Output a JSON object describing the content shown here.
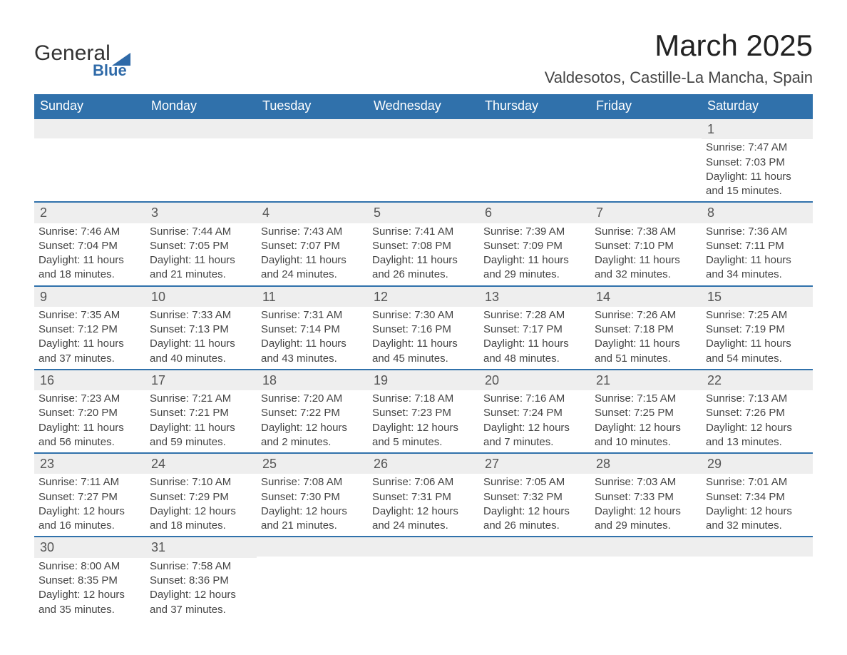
{
  "logo": {
    "word1": "General",
    "word2": "Blue",
    "shape_color": "#2f6aa8"
  },
  "title": "March 2025",
  "location": "Valdesotos, Castille-La Mancha, Spain",
  "header_bg": "#3071ab",
  "header_fg": "#ffffff",
  "daynum_bg": "#eeeeee",
  "row_divider": "#3071ab",
  "text_color": "#444444",
  "columns": [
    "Sunday",
    "Monday",
    "Tuesday",
    "Wednesday",
    "Thursday",
    "Friday",
    "Saturday"
  ],
  "weeks": [
    [
      null,
      null,
      null,
      null,
      null,
      null,
      {
        "n": "1",
        "sr": "7:47 AM",
        "ss": "7:03 PM",
        "dl": "11 hours and 15 minutes."
      }
    ],
    [
      {
        "n": "2",
        "sr": "7:46 AM",
        "ss": "7:04 PM",
        "dl": "11 hours and 18 minutes."
      },
      {
        "n": "3",
        "sr": "7:44 AM",
        "ss": "7:05 PM",
        "dl": "11 hours and 21 minutes."
      },
      {
        "n": "4",
        "sr": "7:43 AM",
        "ss": "7:07 PM",
        "dl": "11 hours and 24 minutes."
      },
      {
        "n": "5",
        "sr": "7:41 AM",
        "ss": "7:08 PM",
        "dl": "11 hours and 26 minutes."
      },
      {
        "n": "6",
        "sr": "7:39 AM",
        "ss": "7:09 PM",
        "dl": "11 hours and 29 minutes."
      },
      {
        "n": "7",
        "sr": "7:38 AM",
        "ss": "7:10 PM",
        "dl": "11 hours and 32 minutes."
      },
      {
        "n": "8",
        "sr": "7:36 AM",
        "ss": "7:11 PM",
        "dl": "11 hours and 34 minutes."
      }
    ],
    [
      {
        "n": "9",
        "sr": "7:35 AM",
        "ss": "7:12 PM",
        "dl": "11 hours and 37 minutes."
      },
      {
        "n": "10",
        "sr": "7:33 AM",
        "ss": "7:13 PM",
        "dl": "11 hours and 40 minutes."
      },
      {
        "n": "11",
        "sr": "7:31 AM",
        "ss": "7:14 PM",
        "dl": "11 hours and 43 minutes."
      },
      {
        "n": "12",
        "sr": "7:30 AM",
        "ss": "7:16 PM",
        "dl": "11 hours and 45 minutes."
      },
      {
        "n": "13",
        "sr": "7:28 AM",
        "ss": "7:17 PM",
        "dl": "11 hours and 48 minutes."
      },
      {
        "n": "14",
        "sr": "7:26 AM",
        "ss": "7:18 PM",
        "dl": "11 hours and 51 minutes."
      },
      {
        "n": "15",
        "sr": "7:25 AM",
        "ss": "7:19 PM",
        "dl": "11 hours and 54 minutes."
      }
    ],
    [
      {
        "n": "16",
        "sr": "7:23 AM",
        "ss": "7:20 PM",
        "dl": "11 hours and 56 minutes."
      },
      {
        "n": "17",
        "sr": "7:21 AM",
        "ss": "7:21 PM",
        "dl": "11 hours and 59 minutes."
      },
      {
        "n": "18",
        "sr": "7:20 AM",
        "ss": "7:22 PM",
        "dl": "12 hours and 2 minutes."
      },
      {
        "n": "19",
        "sr": "7:18 AM",
        "ss": "7:23 PM",
        "dl": "12 hours and 5 minutes."
      },
      {
        "n": "20",
        "sr": "7:16 AM",
        "ss": "7:24 PM",
        "dl": "12 hours and 7 minutes."
      },
      {
        "n": "21",
        "sr": "7:15 AM",
        "ss": "7:25 PM",
        "dl": "12 hours and 10 minutes."
      },
      {
        "n": "22",
        "sr": "7:13 AM",
        "ss": "7:26 PM",
        "dl": "12 hours and 13 minutes."
      }
    ],
    [
      {
        "n": "23",
        "sr": "7:11 AM",
        "ss": "7:27 PM",
        "dl": "12 hours and 16 minutes."
      },
      {
        "n": "24",
        "sr": "7:10 AM",
        "ss": "7:29 PM",
        "dl": "12 hours and 18 minutes."
      },
      {
        "n": "25",
        "sr": "7:08 AM",
        "ss": "7:30 PM",
        "dl": "12 hours and 21 minutes."
      },
      {
        "n": "26",
        "sr": "7:06 AM",
        "ss": "7:31 PM",
        "dl": "12 hours and 24 minutes."
      },
      {
        "n": "27",
        "sr": "7:05 AM",
        "ss": "7:32 PM",
        "dl": "12 hours and 26 minutes."
      },
      {
        "n": "28",
        "sr": "7:03 AM",
        "ss": "7:33 PM",
        "dl": "12 hours and 29 minutes."
      },
      {
        "n": "29",
        "sr": "7:01 AM",
        "ss": "7:34 PM",
        "dl": "12 hours and 32 minutes."
      }
    ],
    [
      {
        "n": "30",
        "sr": "8:00 AM",
        "ss": "8:35 PM",
        "dl": "12 hours and 35 minutes."
      },
      {
        "n": "31",
        "sr": "7:58 AM",
        "ss": "8:36 PM",
        "dl": "12 hours and 37 minutes."
      },
      null,
      null,
      null,
      null,
      null
    ]
  ],
  "labels": {
    "sunrise": "Sunrise: ",
    "sunset": "Sunset: ",
    "daylight": "Daylight: "
  }
}
